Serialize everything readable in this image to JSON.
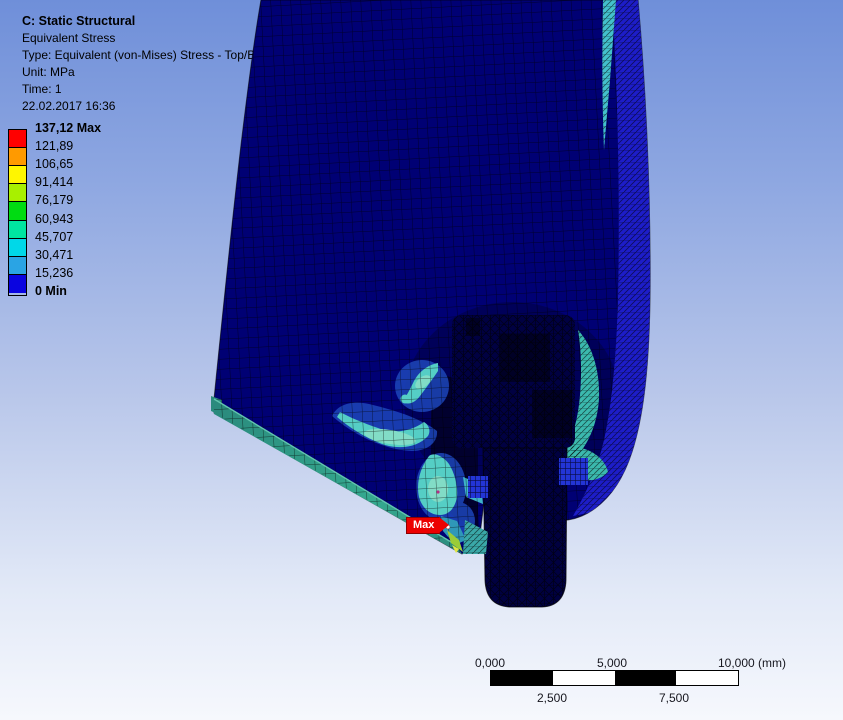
{
  "header": {
    "title": "C: Static Structural",
    "lines": [
      "Equivalent Stress",
      "Type: Equivalent (von-Mises) Stress - Top/Bottom - Layer 0",
      "Unit: MPa",
      "Time: 1",
      "22.02.2017 16:36"
    ]
  },
  "legend": {
    "unit": "MPa",
    "entries": [
      {
        "label": "137,12 Max",
        "bold": true
      },
      {
        "label": "121,89",
        "bold": false
      },
      {
        "label": "106,65",
        "bold": false
      },
      {
        "label": "91,414",
        "bold": false
      },
      {
        "label": "76,179",
        "bold": false
      },
      {
        "label": "60,943",
        "bold": false
      },
      {
        "label": "45,707",
        "bold": false
      },
      {
        "label": "30,471",
        "bold": false
      },
      {
        "label": "15,236",
        "bold": false
      },
      {
        "label": "0 Min",
        "bold": true
      }
    ],
    "band_colors": [
      "#ff0000",
      "#ff9a00",
      "#fff600",
      "#a8f000",
      "#00dc12",
      "#00e5a0",
      "#00d8e8",
      "#2aa4e4",
      "#0a04e0"
    ]
  },
  "annotations": {
    "max_label": "Max"
  },
  "scale_ruler": {
    "top_labels": [
      "0,000",
      "5,000",
      "10,000 (mm)"
    ],
    "bottom_labels": [
      "2,500",
      "7,500"
    ],
    "segment_colors": [
      "#000000",
      "#ffffff",
      "#000000",
      "#ffffff"
    ]
  },
  "colors": {
    "background_top": "#6f8fd9",
    "background_bottom": "#f6f8fd",
    "max_red": "#ec0000",
    "text": "#000000",
    "scale_text": "#16161e"
  },
  "model": {
    "colors": {
      "shell": "#000074",
      "shell_dark": "#00004e",
      "rim_band": "#1d1dc8",
      "cyan_strip": "#43c0cc",
      "inner_rim": "#3bb9ae",
      "cut_face": "#01002e",
      "halo_blue": "#1d46ba",
      "swirl": "#55cec5",
      "swirl_light": "#82dcc6",
      "small_cyan": "#3fb4c8",
      "cascade": "#2f98b8",
      "tip_face": "#3aa8a8",
      "strip_a": "#2a8a7d",
      "strip_b": "#35a98f",
      "strip_edge": "#62c4ae",
      "tip_green": "#9acc38",
      "tip_yellow": "#e2e640",
      "head": "#000042",
      "pin": "#000040",
      "notch": "#000026",
      "tab_blue": "#2335d6",
      "hot_dot": "#b52f86",
      "max_point": "#ffffff"
    }
  }
}
